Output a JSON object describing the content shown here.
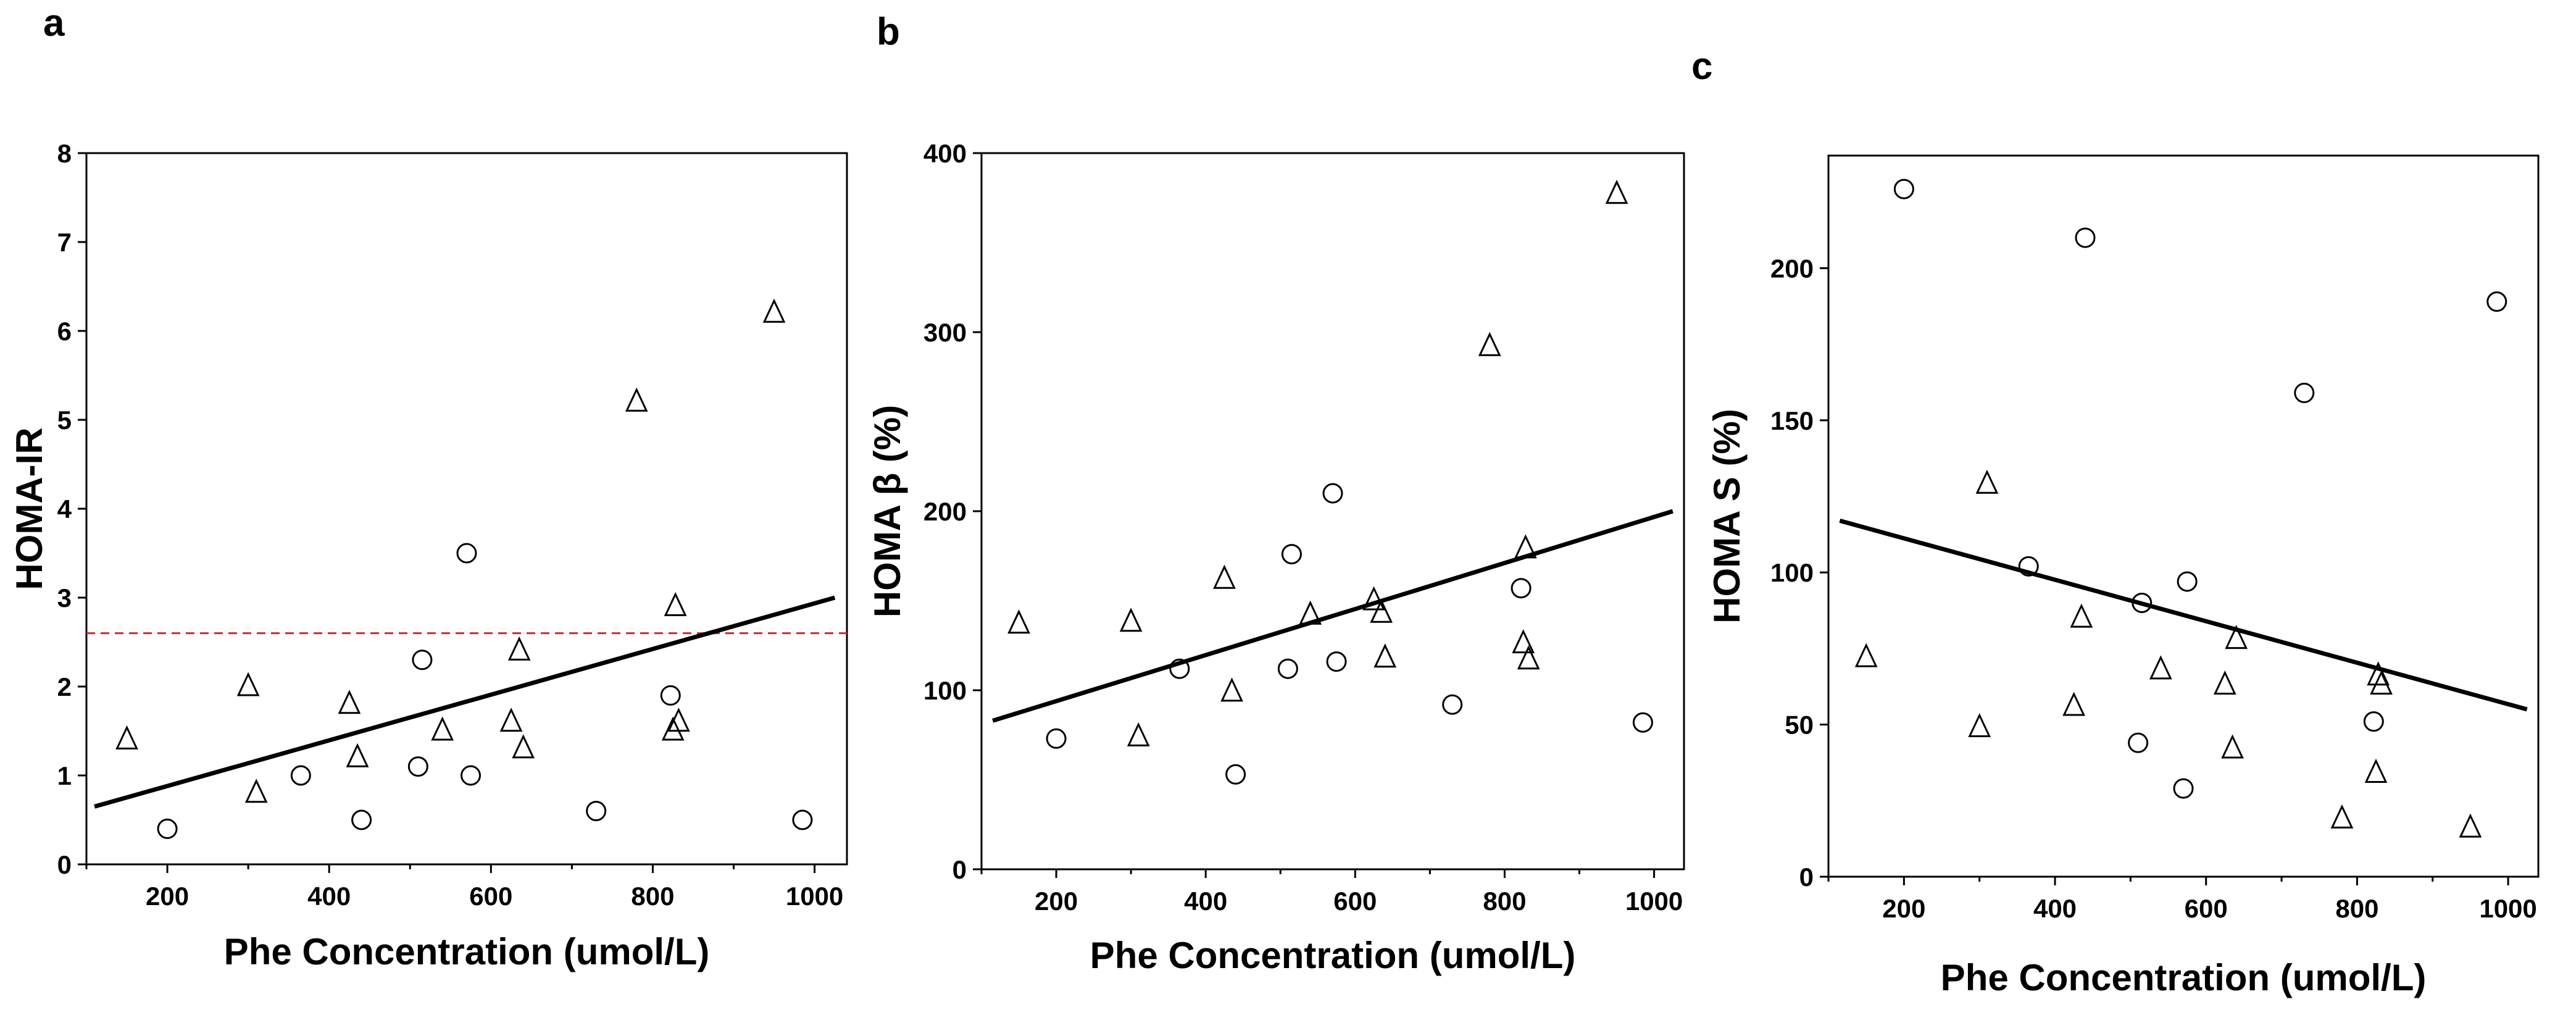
{
  "chart_data": [
    {
      "panel": "a",
      "type": "scatter",
      "xlabel": "Phe Concentration (umol/L)",
      "ylabel": "HOMA-IR",
      "xlim": [
        100,
        1040
      ],
      "ylim": [
        0,
        8
      ],
      "xticks": [
        200,
        400,
        600,
        800,
        1000
      ],
      "yticks": [
        0,
        1,
        2,
        3,
        4,
        5,
        6,
        7,
        8
      ],
      "series": [
        {
          "name": "triangle",
          "marker": "triangle",
          "points": [
            [
              150,
              1.4
            ],
            [
              300,
              2.0
            ],
            [
              310,
              0.8
            ],
            [
              425,
              1.8
            ],
            [
              435,
              1.2
            ],
            [
              540,
              1.5
            ],
            [
              625,
              1.6
            ],
            [
              635,
              2.4
            ],
            [
              640,
              1.3
            ],
            [
              780,
              5.2
            ],
            [
              825,
              1.5
            ],
            [
              828,
              2.9
            ],
            [
              832,
              1.6
            ],
            [
              950,
              6.2
            ]
          ]
        },
        {
          "name": "circle",
          "marker": "circle",
          "points": [
            [
              200,
              0.4
            ],
            [
              365,
              1.0
            ],
            [
              440,
              0.5
            ],
            [
              510,
              1.1
            ],
            [
              515,
              2.3
            ],
            [
              570,
              3.5
            ],
            [
              575,
              1.0
            ],
            [
              730,
              0.6
            ],
            [
              822,
              1.9
            ],
            [
              985,
              0.5
            ]
          ]
        }
      ],
      "fit_line": [
        [
          110,
          0.65
        ],
        [
          1025,
          3.0
        ]
      ],
      "reference_line": {
        "y": 2.6,
        "color": "#d62728",
        "style": "dashed"
      }
    },
    {
      "panel": "b",
      "type": "scatter",
      "xlabel": "Phe Concentration (umol/L)",
      "ylabel": "HOMA β (%)",
      "xlim": [
        100,
        1040
      ],
      "ylim": [
        0,
        400
      ],
      "xticks": [
        200,
        400,
        600,
        800,
        1000
      ],
      "yticks": [
        0,
        100,
        200,
        300,
        400
      ],
      "series": [
        {
          "name": "triangle",
          "marker": "triangle",
          "points": [
            [
              150,
              137
            ],
            [
              300,
              138
            ],
            [
              310,
              74
            ],
            [
              425,
              162
            ],
            [
              435,
              99
            ],
            [
              540,
              142
            ],
            [
              625,
              150
            ],
            [
              635,
              143
            ],
            [
              640,
              118
            ],
            [
              780,
              292
            ],
            [
              825,
              126
            ],
            [
              828,
              179
            ],
            [
              832,
              117
            ],
            [
              950,
              377
            ]
          ]
        },
        {
          "name": "circle",
          "marker": "circle",
          "points": [
            [
              200,
              73
            ],
            [
              365,
              112
            ],
            [
              440,
              53
            ],
            [
              510,
              112
            ],
            [
              515,
              176
            ],
            [
              570,
              210
            ],
            [
              575,
              116
            ],
            [
              730,
              92
            ],
            [
              822,
              157
            ],
            [
              985,
              82
            ]
          ]
        }
      ],
      "fit_line": [
        [
          115,
          83
        ],
        [
          1025,
          200
        ]
      ]
    },
    {
      "panel": "c",
      "type": "scatter",
      "xlabel": "Phe Concentration (umol/L)",
      "ylabel": "HOMA S (%)",
      "xlim": [
        100,
        1040
      ],
      "ylim": [
        0,
        237
      ],
      "xticks": [
        200,
        400,
        600,
        800,
        1000
      ],
      "yticks": [
        0,
        50,
        100,
        150,
        200
      ],
      "series": [
        {
          "name": "triangle",
          "marker": "triangle",
          "points": [
            [
              150,
              72
            ],
            [
              300,
              49
            ],
            [
              310,
              129
            ],
            [
              425,
              56
            ],
            [
              435,
              85
            ],
            [
              540,
              68
            ],
            [
              625,
              63
            ],
            [
              635,
              42
            ],
            [
              640,
              78
            ],
            [
              780,
              19
            ],
            [
              825,
              34
            ],
            [
              828,
              66
            ],
            [
              832,
              63
            ],
            [
              950,
              16
            ]
          ]
        },
        {
          "name": "circle",
          "marker": "circle",
          "points": [
            [
              200,
              226
            ],
            [
              365,
              102
            ],
            [
              440,
              210
            ],
            [
              510,
              44
            ],
            [
              515,
              90
            ],
            [
              570,
              29
            ],
            [
              575,
              97
            ],
            [
              730,
              159
            ],
            [
              822,
              51
            ],
            [
              985,
              189
            ]
          ]
        }
      ],
      "fit_line": [
        [
          115,
          117
        ],
        [
          1025,
          55
        ]
      ]
    }
  ]
}
